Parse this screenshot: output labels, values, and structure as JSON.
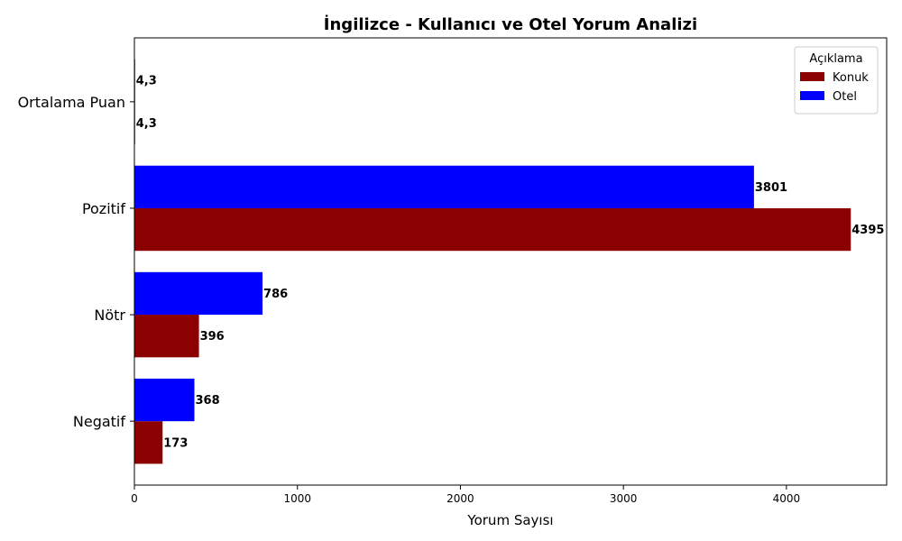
{
  "chart_data": {
    "type": "bar",
    "orientation": "horizontal",
    "title": "İngilizce - Kullanıcı ve Otel Yorum Analizi",
    "xlabel": "Yorum Sayısı",
    "ylabel": "",
    "xlim": [
      0,
      4615
    ],
    "xticks": [
      0,
      1000,
      2000,
      3000,
      4000
    ],
    "grid": false,
    "categories": [
      "Negatif",
      "Nötr",
      "Pozitif",
      "Ortalama Puan"
    ],
    "series": [
      {
        "name": "Konuk",
        "color": "#8b0000",
        "values": [
          173,
          396,
          4395,
          4.3
        ],
        "labels": [
          "173",
          "396",
          "4395",
          "4,3"
        ]
      },
      {
        "name": "Otel",
        "color": "#0000ff",
        "values": [
          368,
          786,
          3801,
          4.3
        ],
        "labels": [
          "368",
          "786",
          "3801",
          "4,3"
        ]
      }
    ],
    "legend": {
      "title": "Açıklama",
      "position": "top-right"
    }
  }
}
